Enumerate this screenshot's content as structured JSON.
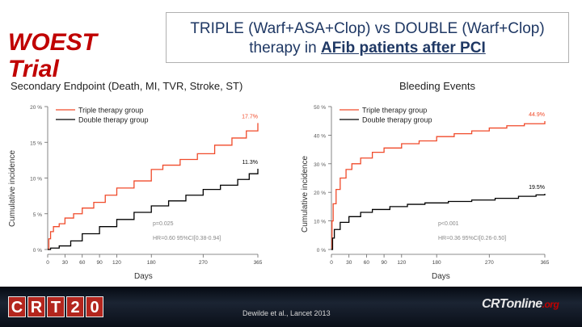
{
  "header": {
    "trial_name": "WOEST Trial",
    "title_line1": "TRIPLE (Warf+ASA+Clop) vs DOUBLE (Warf+Clop)",
    "title_line2_prefix": "therapy in ",
    "title_line2_highlight": "AFib patients after PCI"
  },
  "colors": {
    "triple": "#f04a2a",
    "double": "#000000",
    "title": "#1f3864",
    "trial": "#c00000"
  },
  "footer": {
    "logo_letters": [
      "C",
      "R",
      "T",
      "2",
      "0"
    ],
    "citation": "Dewilde et al., Lancet 2013",
    "brand_main": "CRTonline",
    "brand_suffix": ".org"
  },
  "chart_data": [
    {
      "type": "line",
      "title": "Secondary Endpoint (Death, MI, TVR, Stroke, ST)",
      "xlabel": "Days",
      "ylabel": "Cumulative incidence",
      "xlim": [
        0,
        365
      ],
      "ylim": [
        0,
        20
      ],
      "xticks": [
        "0",
        "30",
        "60",
        "90",
        "120",
        "180",
        "270",
        "365"
      ],
      "yticks": [
        "0 %",
        "5 %",
        "10 %",
        "15 %",
        "20 %"
      ],
      "legend": [
        "Triple therapy group",
        "Double therapy group"
      ],
      "legend_position": "top-left",
      "series": [
        {
          "name": "Triple therapy group",
          "end_label": "17.7%",
          "points": [
            [
              0,
              0
            ],
            [
              2,
              1.5
            ],
            [
              5,
              2.5
            ],
            [
              10,
              3.2
            ],
            [
              20,
              3.6
            ],
            [
              30,
              4.4
            ],
            [
              45,
              5.0
            ],
            [
              60,
              5.8
            ],
            [
              80,
              6.6
            ],
            [
              100,
              7.6
            ],
            [
              120,
              8.6
            ],
            [
              150,
              9.6
            ],
            [
              180,
              11.2
            ],
            [
              200,
              11.8
            ],
            [
              230,
              12.6
            ],
            [
              260,
              13.4
            ],
            [
              290,
              14.6
            ],
            [
              320,
              15.6
            ],
            [
              345,
              16.6
            ],
            [
              365,
              17.7
            ]
          ]
        },
        {
          "name": "Double therapy group",
          "end_label": "11.3%",
          "points": [
            [
              0,
              0
            ],
            [
              5,
              0.2
            ],
            [
              20,
              0.5
            ],
            [
              40,
              1.2
            ],
            [
              60,
              2.2
            ],
            [
              90,
              3.2
            ],
            [
              120,
              4.2
            ],
            [
              150,
              5.2
            ],
            [
              180,
              6.1
            ],
            [
              210,
              6.8
            ],
            [
              240,
              7.6
            ],
            [
              270,
              8.4
            ],
            [
              300,
              9.0
            ],
            [
              330,
              9.8
            ],
            [
              350,
              10.6
            ],
            [
              365,
              11.3
            ]
          ]
        }
      ],
      "annotations": [
        "p=0.025",
        "HR=0.60  95%CI[0.38-0.94]"
      ]
    },
    {
      "type": "line",
      "title": "Bleeding Events",
      "xlabel": "Days",
      "ylabel": "Cumulative incidence",
      "xlim": [
        0,
        365
      ],
      "ylim": [
        0,
        50
      ],
      "xticks": [
        "0",
        "30",
        "60",
        "90",
        "120",
        "180",
        "270",
        "365"
      ],
      "yticks": [
        "0 %",
        "10 %",
        "20 %",
        "30 %",
        "40 %",
        "50 %"
      ],
      "legend": [
        "Triple therapy group",
        "Double therapy group"
      ],
      "legend_position": "top-left",
      "series": [
        {
          "name": "Triple therapy group",
          "end_label": "44.9%",
          "points": [
            [
              0,
              0
            ],
            [
              1,
              10
            ],
            [
              3,
              16
            ],
            [
              8,
              21
            ],
            [
              15,
              25
            ],
            [
              25,
              28
            ],
            [
              35,
              30
            ],
            [
              50,
              32
            ],
            [
              70,
              34
            ],
            [
              90,
              35.5
            ],
            [
              120,
              37
            ],
            [
              150,
              38
            ],
            [
              180,
              39.5
            ],
            [
              210,
              40.5
            ],
            [
              240,
              41.5
            ],
            [
              270,
              42.5
            ],
            [
              300,
              43.3
            ],
            [
              330,
              44
            ],
            [
              365,
              44.9
            ]
          ]
        },
        {
          "name": "Double therapy group",
          "end_label": "19.5%",
          "points": [
            [
              0,
              0
            ],
            [
              2,
              4
            ],
            [
              5,
              7
            ],
            [
              15,
              9.5
            ],
            [
              30,
              11.5
            ],
            [
              50,
              13
            ],
            [
              70,
              14
            ],
            [
              100,
              15
            ],
            [
              130,
              15.8
            ],
            [
              160,
              16.3
            ],
            [
              200,
              16.8
            ],
            [
              240,
              17.3
            ],
            [
              280,
              17.9
            ],
            [
              320,
              18.6
            ],
            [
              350,
              19.1
            ],
            [
              365,
              19.5
            ]
          ]
        }
      ],
      "annotations": [
        "p<0.001",
        "HR=0.36  95%CI[0.26-0.50]"
      ]
    }
  ]
}
